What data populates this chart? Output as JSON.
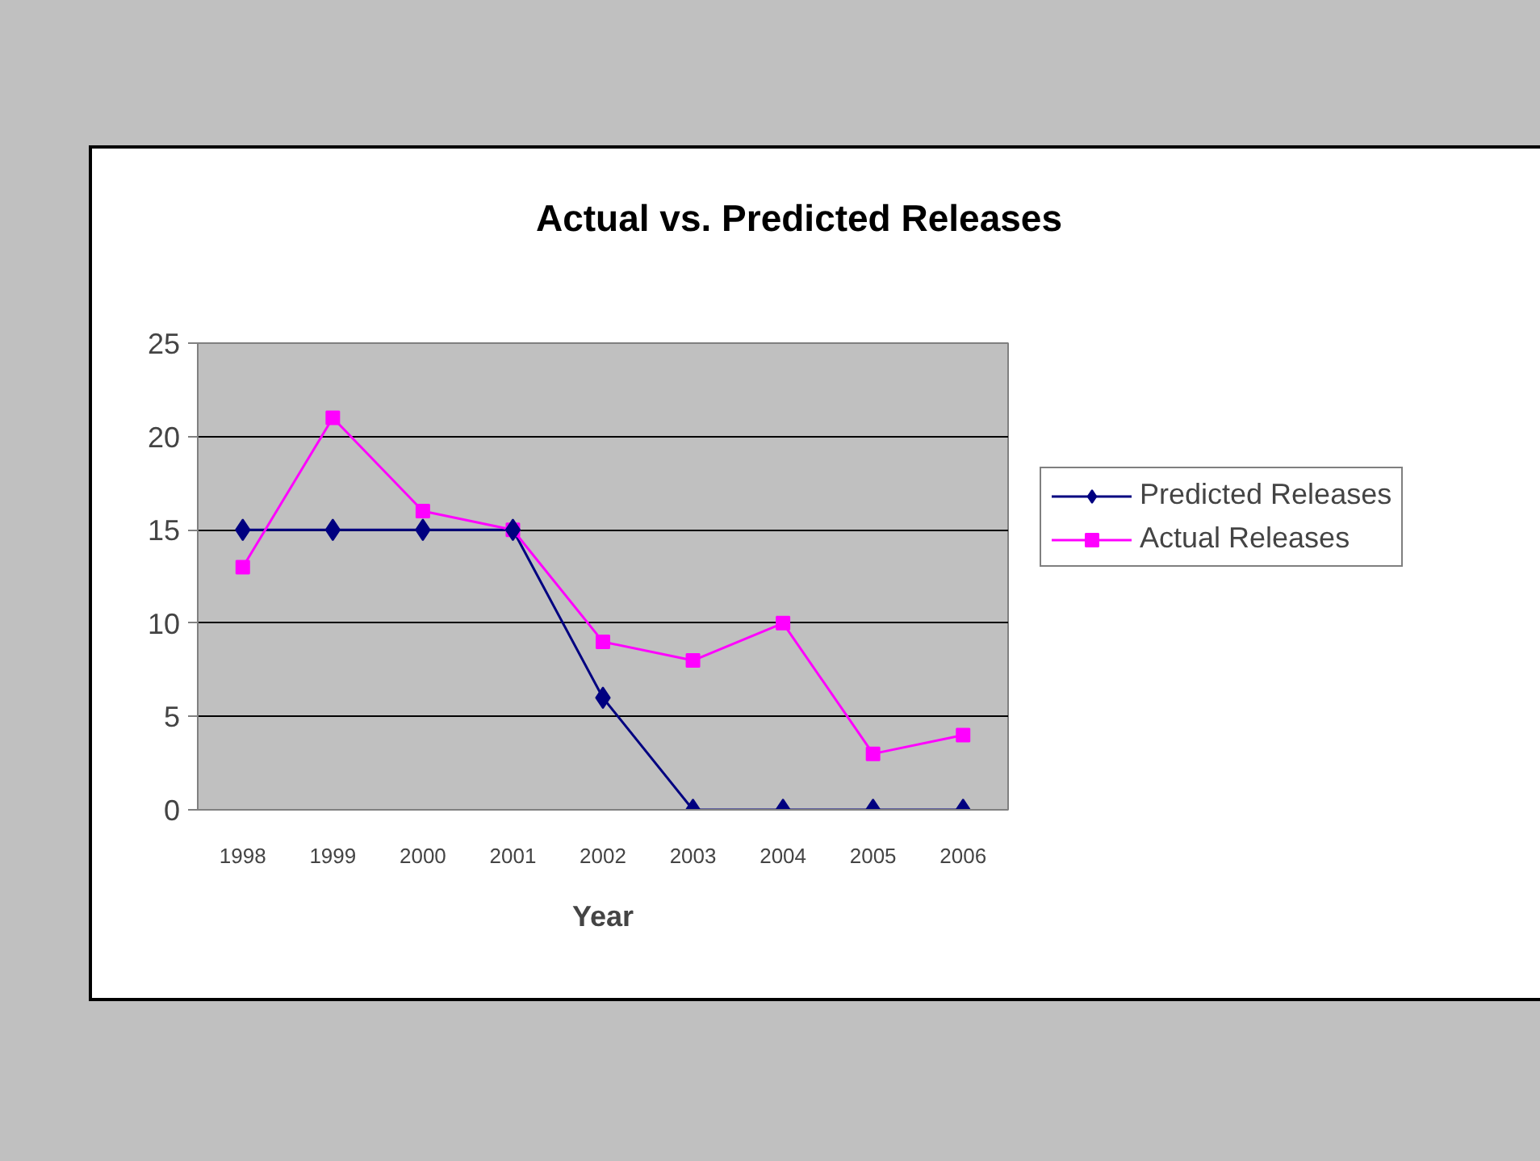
{
  "chart_data": {
    "type": "line",
    "title": "Actual vs. Predicted Releases",
    "xlabel": "Year",
    "categories": [
      "1998",
      "1999",
      "2000",
      "2001",
      "2002",
      "2003",
      "2004",
      "2005",
      "2006"
    ],
    "series": [
      {
        "name": "Predicted Releases",
        "color": "#000080",
        "marker": "diamond",
        "values": [
          15,
          15,
          15,
          15,
          6,
          0,
          0,
          0,
          0
        ]
      },
      {
        "name": "Actual Releases",
        "color": "#ff00ff",
        "marker": "square",
        "values": [
          13,
          21,
          16,
          15,
          9,
          8,
          10,
          3,
          4
        ]
      }
    ],
    "ylim": [
      0,
      25
    ],
    "yticks": [
      0,
      5,
      10,
      15,
      20,
      25
    ],
    "grid": "y",
    "legend": "right"
  }
}
